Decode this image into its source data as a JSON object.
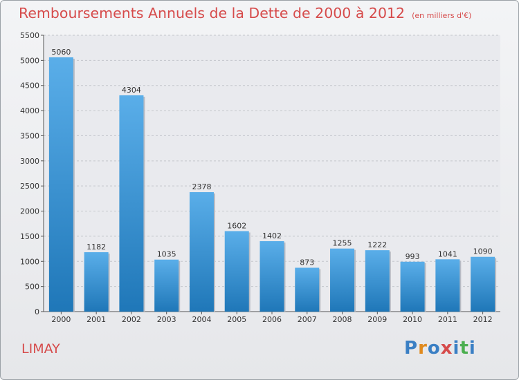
{
  "chart_data": {
    "type": "bar",
    "title": "Remboursements Annuels de la Dette de 2000 à 2012",
    "subtitle": "(en milliers d'€)",
    "categories": [
      "2000",
      "2001",
      "2002",
      "2003",
      "2004",
      "2005",
      "2006",
      "2007",
      "2008",
      "2009",
      "2010",
      "2011",
      "2012"
    ],
    "values": [
      5060,
      1182,
      4304,
      1035,
      2378,
      1602,
      1402,
      873,
      1255,
      1222,
      993,
      1041,
      1090
    ],
    "ylim": [
      0,
      5500
    ],
    "yticks": [
      0,
      500,
      1000,
      1500,
      2000,
      2500,
      3000,
      3500,
      4000,
      4500,
      5000,
      5500
    ],
    "grid": true,
    "xlabel": "",
    "ylabel": ""
  },
  "footer": {
    "town": "LIMAY",
    "logo_letters": [
      "P",
      "r",
      "o",
      "x",
      "i",
      "t",
      "i"
    ]
  },
  "colors": {
    "accent": "#d64b4b",
    "bar_top": "#5aaee9",
    "bar_bottom": "#1f77b8",
    "logo": [
      "#3a7fc4",
      "#e08a1e",
      "#3a7fc4",
      "#d64b4b",
      "#3a7fc4",
      "#4caf50",
      "#3a7fc4"
    ]
  }
}
